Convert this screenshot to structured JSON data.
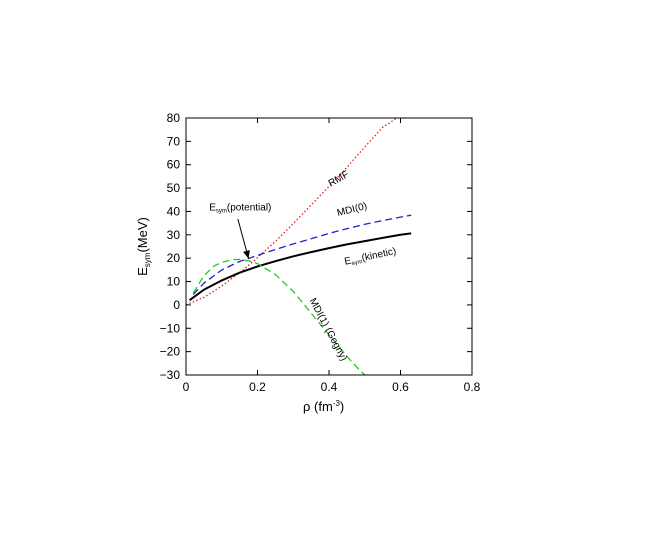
{
  "chart_data": {
    "type": "line",
    "xlabel": "ρ (fm⁻³)",
    "ylabel": "E_sym(MeV)",
    "xlabel_parts": {
      "main": "ρ (fm",
      "sup": "-3",
      "close": ")"
    },
    "ylabel_parts": {
      "main": "E",
      "sub": "sym",
      "rest": "(MeV)"
    },
    "xlim": [
      0,
      0.8
    ],
    "ylim": [
      -30,
      80
    ],
    "xticks": [
      0,
      0.2,
      0.4,
      0.6,
      0.8
    ],
    "xtick_labels": [
      "0",
      "0.2",
      "0.4",
      "0.6",
      "0.8"
    ],
    "yticks": [
      -30,
      -20,
      -10,
      0,
      10,
      20,
      30,
      40,
      50,
      60,
      70,
      80
    ],
    "ytick_labels": [
      "−30",
      "−20",
      "−10",
      "0",
      "10",
      "20",
      "30",
      "40",
      "50",
      "60",
      "70",
      "80"
    ],
    "grid": false,
    "legend": "none",
    "series": [
      {
        "key": "rmf",
        "style": "dotted",
        "color": "#e8201a",
        "x": [
          0.0,
          0.05,
          0.1,
          0.15,
          0.16,
          0.2,
          0.25,
          0.3,
          0.35,
          0.4,
          0.45,
          0.5,
          0.55,
          0.6
        ],
        "y": [
          0.0,
          3.2,
          8.1,
          13.8,
          15.0,
          20.2,
          27.2,
          34.8,
          42.7,
          50.7,
          58.9,
          67.6,
          76.0,
          81.0
        ]
      },
      {
        "key": "mdi0",
        "style": "dashed",
        "color": "#1f1fd8",
        "x": [
          0.02,
          0.05,
          0.1,
          0.15,
          0.2,
          0.25,
          0.3,
          0.35,
          0.4,
          0.45,
          0.5,
          0.55,
          0.6,
          0.63
        ],
        "y": [
          4.5,
          9.3,
          15.0,
          18.6,
          21.2,
          23.7,
          26.1,
          28.3,
          30.6,
          32.6,
          34.5,
          36.1,
          37.6,
          38.4
        ]
      },
      {
        "key": "kinetic",
        "style": "solid",
        "color": "#000000",
        "x": [
          0.01,
          0.05,
          0.1,
          0.15,
          0.2,
          0.25,
          0.3,
          0.35,
          0.4,
          0.45,
          0.5,
          0.55,
          0.6,
          0.63
        ],
        "y": [
          2.0,
          6.5,
          10.5,
          13.8,
          16.5,
          18.7,
          20.8,
          22.6,
          24.3,
          25.9,
          27.3,
          28.7,
          30.0,
          30.6
        ]
      },
      {
        "key": "mdi1",
        "style": "dashed",
        "color": "#20cc20",
        "x": [
          0.02,
          0.05,
          0.08,
          0.1,
          0.13,
          0.15,
          0.18,
          0.2,
          0.25,
          0.3,
          0.35,
          0.4,
          0.45,
          0.48,
          0.5
        ],
        "y": [
          5.0,
          12.5,
          16.8,
          18.2,
          19.4,
          19.5,
          18.7,
          17.7,
          13.0,
          5.8,
          -3.5,
          -12.8,
          -22.0,
          -27.0,
          -30.0
        ]
      }
    ],
    "annotations": [
      {
        "key": "rmf_label",
        "parts": [
          "RMF"
        ],
        "x": 0.405,
        "y": 50.5,
        "rotate": -30
      },
      {
        "key": "mdi0_label",
        "parts": [
          "MDI(0)"
        ],
        "x": 0.425,
        "y": 38.0,
        "rotate": -14
      },
      {
        "key": "kinetic_label",
        "parts": [
          "E",
          "sym",
          "(kinetic)"
        ],
        "x": 0.445,
        "y": 17.2,
        "rotate": -12
      },
      {
        "key": "mdi1_label",
        "parts": [
          "MDI(1) (Gogny)"
        ],
        "x": 0.345,
        "y": 2.0,
        "rotate": 62
      },
      {
        "key": "potential_label",
        "parts": [
          "E",
          "sym",
          "(potential)"
        ],
        "x": 0.065,
        "y": 40.5,
        "rotate": 0
      }
    ],
    "arrow": {
      "from": [
        0.145,
        36.8
      ],
      "to": [
        0.175,
        19.8
      ]
    }
  }
}
